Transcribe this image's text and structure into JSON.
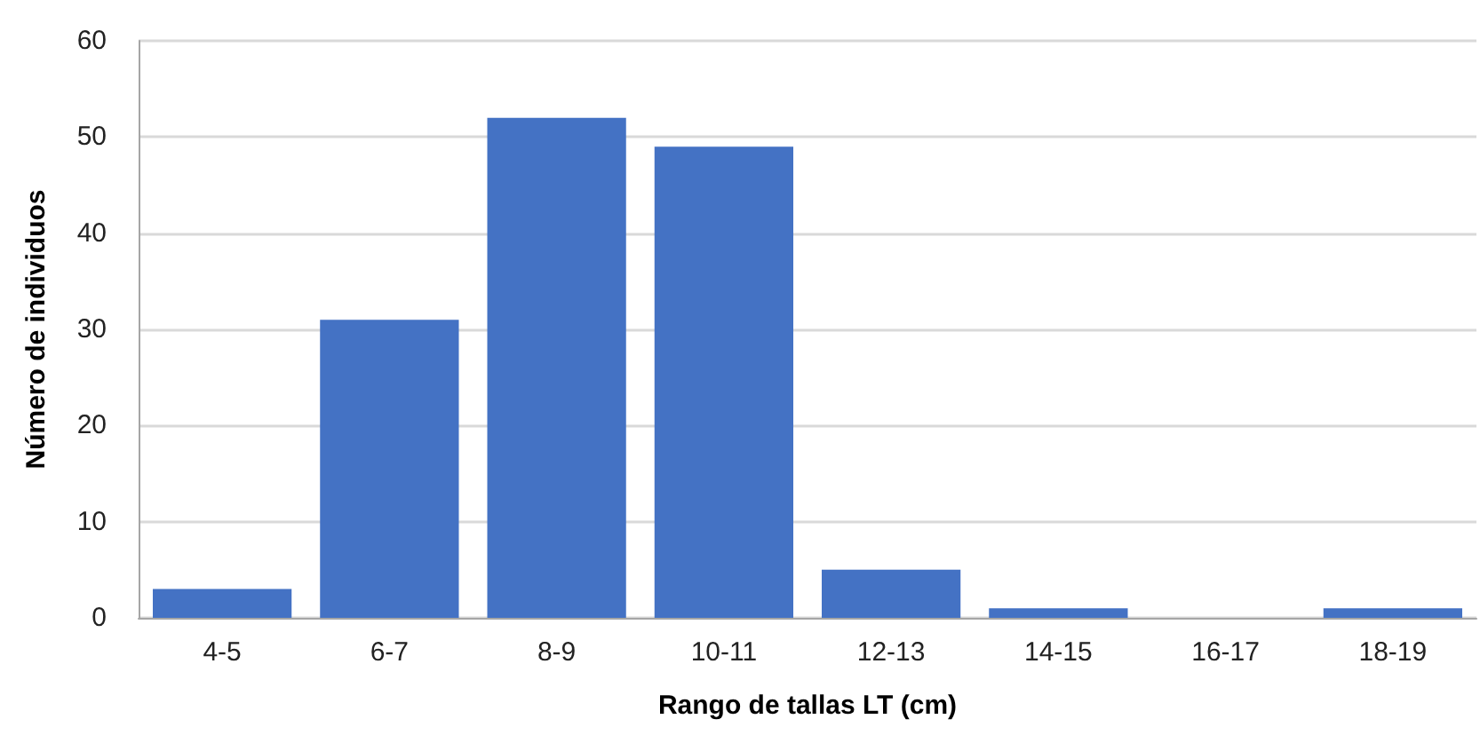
{
  "chart_data": {
    "type": "bar",
    "xlabel": "Rango de tallas LT (cm)",
    "ylabel": "Número de individuos",
    "categories": [
      "4-5",
      "6-7",
      "8-9",
      "10-11",
      "12-13",
      "14-15",
      "16-17",
      "18-19"
    ],
    "values": [
      3,
      31,
      52,
      49,
      5,
      1,
      0,
      1
    ],
    "color": "#4472c4",
    "ylim": [
      0,
      60
    ],
    "yticks": [
      0,
      10,
      20,
      30,
      40,
      50,
      60
    ],
    "grid": "y"
  }
}
